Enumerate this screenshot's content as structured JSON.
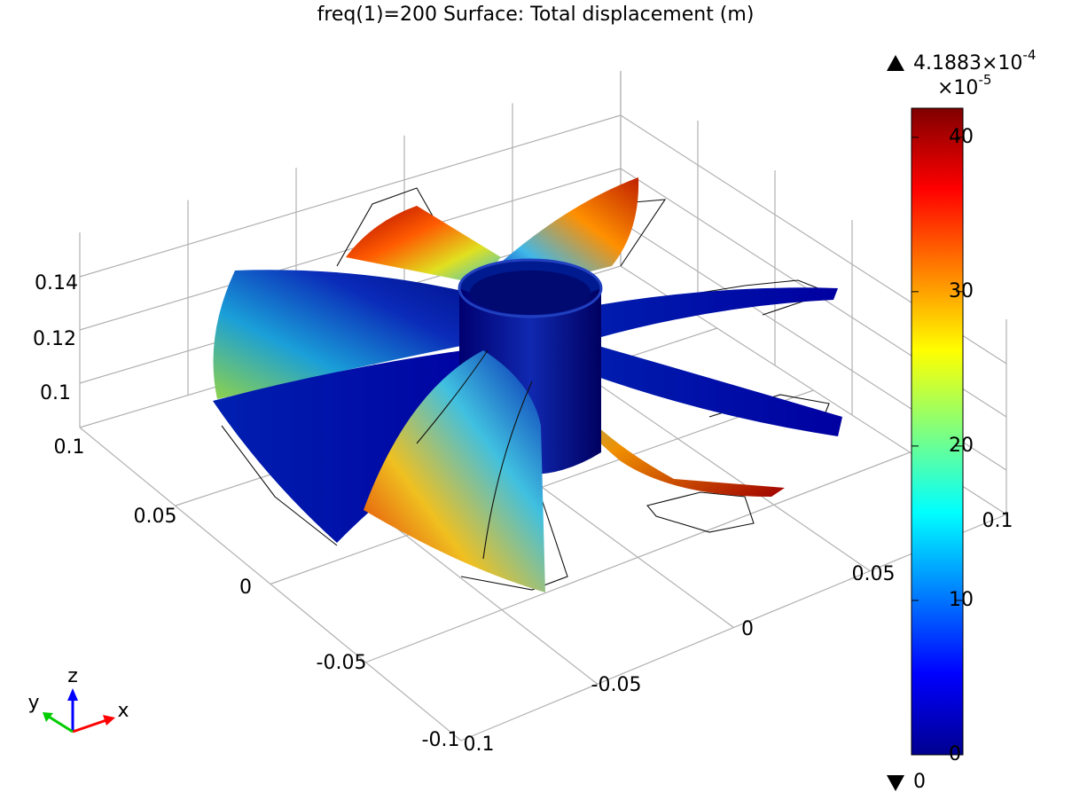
{
  "title": "freq(1)=200   Surface: Total displacement (m)",
  "colorbar": {
    "max_label": "4.1883×10",
    "max_exponent": "-4",
    "scale_label": "×10",
    "scale_exponent": "-5",
    "range": [
      0,
      41.883
    ],
    "ticks": [
      0,
      10,
      20,
      30,
      40
    ],
    "min_label": "0"
  },
  "axes": {
    "z_ticks": [
      "0.14",
      "0.12",
      "0.1"
    ],
    "y_ticks": [
      "0.1",
      "0.05",
      "0",
      "-0.05",
      "-0.1"
    ],
    "x_ticks": [
      "0.1",
      "-0.05",
      "0",
      "0.05",
      "0.1"
    ]
  },
  "triad": {
    "x": "x",
    "y": "y",
    "z": "z"
  }
}
